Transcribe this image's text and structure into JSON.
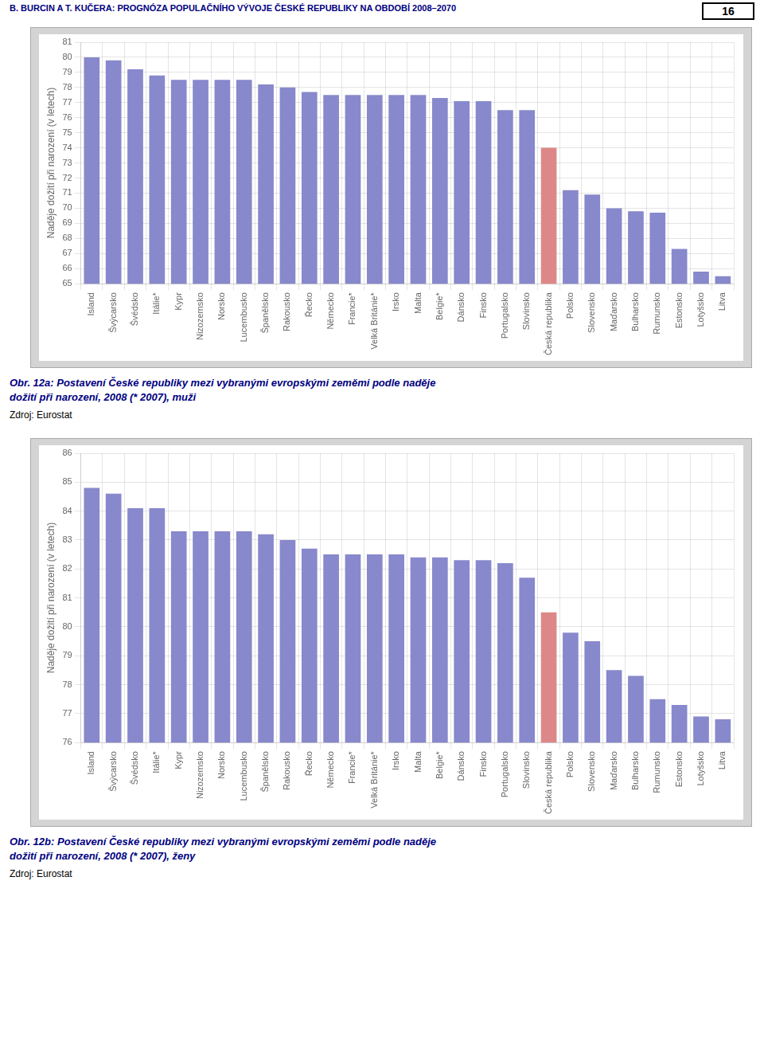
{
  "annotations": [
    "B. BURCIN A T. KUČERA: PROGNÓZA POPULAČNÍHO VÝVOJE ČESKÉ REPUBLIKY NA OBDOBÍ 2008–2070",
    "16"
  ],
  "chart_data": [
    {
      "type": "bar",
      "title": [
        "Obr. 12a: Postavení České republiky mezi vybranými evropskými zeměmi podle naděje",
        "dožití při narození, 2008 (* 2007), muži"
      ],
      "annotations": [
        "Zdroj: Eurostat"
      ],
      "ylabel": "Naděje dožití při narození (v letech)",
      "categories": [
        "Island",
        "Švýcarsko",
        "Švédsko",
        "Itálie*",
        "Kypr",
        "Nizozemsko",
        "Norsko",
        "Lucembusko",
        "Španělsko",
        "Rakousko",
        "Řecko",
        "Německo",
        "Francie*",
        "Velká Británie*",
        "Irsko",
        "Malta",
        "Belgie*",
        "Dánsko",
        "Finsko",
        "Portugalsko",
        "Slovinsko",
        "Česká republika",
        "Polsko",
        "Slovensko",
        "Maďarsko",
        "Bulharsko",
        "Rumunsko",
        "Estonsko",
        "Lotyšsko",
        "Litva"
      ],
      "values": [
        80.0,
        79.8,
        79.2,
        78.8,
        78.5,
        78.5,
        78.5,
        78.5,
        78.2,
        78.0,
        77.7,
        77.5,
        77.5,
        77.5,
        77.5,
        77.5,
        77.3,
        77.1,
        77.1,
        76.5,
        76.5,
        74.0,
        71.2,
        70.9,
        70.0,
        69.8,
        69.7,
        67.3,
        65.8,
        65.5
      ],
      "colors": [
        "#8888cc",
        "#8888cc",
        "#8888cc",
        "#8888cc",
        "#8888cc",
        "#8888cc",
        "#8888cc",
        "#8888cc",
        "#8888cc",
        "#8888cc",
        "#8888cc",
        "#8888cc",
        "#8888cc",
        "#8888cc",
        "#8888cc",
        "#8888cc",
        "#8888cc",
        "#8888cc",
        "#8888cc",
        "#8888cc",
        "#8888cc",
        "#dd8888",
        "#8888cc",
        "#8888cc",
        "#8888cc",
        "#8888cc",
        "#8888cc",
        "#8888cc",
        "#8888cc",
        "#8888cc"
      ],
      "ylim": [
        65,
        81
      ],
      "yticks": [
        65,
        66,
        67,
        68,
        69,
        70,
        71,
        72,
        73,
        74,
        75,
        76,
        77,
        78,
        79,
        80,
        81
      ],
      "grid": true
    },
    {
      "type": "bar",
      "title": [
        "Obr. 12b: Postavení České republiky mezi vybranými evropskými zeměmi podle naděje",
        "dožití při narození, 2008 (* 2007), ženy"
      ],
      "annotations": [
        "Zdroj: Eurostat"
      ],
      "ylabel": "Naděje dožití při narození (v letech)",
      "categories": [
        "Island",
        "Švýcarsko",
        "Švédsko",
        "Itálie*",
        "Kypr",
        "Nizozemsko",
        "Norsko",
        "Lucembusko",
        "Španělsko",
        "Rakousko",
        "Řecko",
        "Německo",
        "Francie*",
        "Velká Británie*",
        "Irsko",
        "Malta",
        "Belgie*",
        "Dánsko",
        "Finsko",
        "Portugalsko",
        "Slovinsko",
        "Česká republika",
        "Polsko",
        "Slovensko",
        "Maďarsko",
        "Bulharsko",
        "Rumunsko",
        "Estonsko",
        "Lotyšsko",
        "Litva"
      ],
      "values": [
        84.8,
        84.6,
        84.1,
        84.1,
        83.3,
        83.3,
        83.3,
        83.3,
        83.2,
        83.0,
        82.7,
        82.5,
        82.5,
        82.5,
        82.5,
        82.4,
        82.4,
        82.3,
        82.3,
        82.2,
        81.7,
        80.5,
        79.8,
        79.5,
        78.5,
        78.3,
        77.5,
        77.3,
        76.9,
        76.8
      ],
      "colors": [
        "#8888cc",
        "#8888cc",
        "#8888cc",
        "#8888cc",
        "#8888cc",
        "#8888cc",
        "#8888cc",
        "#8888cc",
        "#8888cc",
        "#8888cc",
        "#8888cc",
        "#8888cc",
        "#8888cc",
        "#8888cc",
        "#8888cc",
        "#8888cc",
        "#8888cc",
        "#8888cc",
        "#8888cc",
        "#8888cc",
        "#8888cc",
        "#dd8888",
        "#8888cc",
        "#8888cc",
        "#8888cc",
        "#8888cc",
        "#8888cc",
        "#8888cc",
        "#8888cc",
        "#8888cc"
      ],
      "ylim": [
        76,
        86
      ],
      "yticks": [
        76,
        77,
        78,
        79,
        80,
        81,
        82,
        83,
        84,
        85,
        86
      ],
      "grid": true
    }
  ]
}
